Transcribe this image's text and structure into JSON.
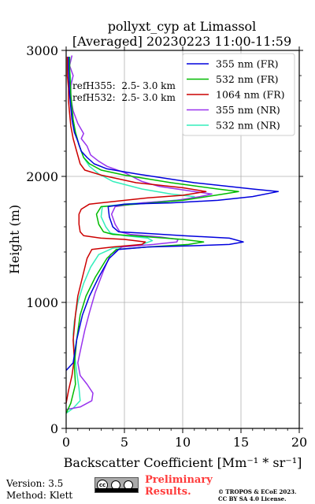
{
  "chart_data": {
    "type": "line",
    "title": "pollyxt_cyp at Limassol",
    "subtitle": "[Averaged] 20230223 11:00-11:59",
    "xlabel": "Backscatter Coefficient [Mm⁻¹ * sr⁻¹]",
    "ylabel": "Height (m)",
    "xlim": [
      0,
      20
    ],
    "ylim": [
      0,
      3000
    ],
    "xticks": [
      0,
      5,
      10,
      15,
      20
    ],
    "yticks": [
      0,
      1000,
      2000,
      3000
    ],
    "xtick_labels": [
      "0",
      "5",
      "10",
      "15",
      "20"
    ],
    "ytick_labels": [
      "0",
      "1000",
      "2000",
      "3000"
    ],
    "grid": true,
    "legend_placement": "top-right",
    "annotations": [
      "refH355:  2.5- 3.0 km",
      "refH532:  2.5- 3.0 km"
    ],
    "series": [
      {
        "name": "355 nm (FR)",
        "color": "#0000dd",
        "points": [
          [
            0,
            460
          ],
          [
            0.6,
            520
          ],
          [
            0.9,
            700
          ],
          [
            1.4,
            900
          ],
          [
            2.0,
            1050
          ],
          [
            2.8,
            1200
          ],
          [
            3.7,
            1350
          ],
          [
            4.5,
            1420
          ],
          [
            7.0,
            1440
          ],
          [
            11.0,
            1450
          ],
          [
            14.0,
            1460
          ],
          [
            15.2,
            1480
          ],
          [
            14.0,
            1510
          ],
          [
            10.0,
            1530
          ],
          [
            6.5,
            1550
          ],
          [
            4.5,
            1560
          ],
          [
            4.0,
            1600
          ],
          [
            3.7,
            1680
          ],
          [
            3.6,
            1760
          ],
          [
            5.0,
            1780
          ],
          [
            9.0,
            1790
          ],
          [
            13.0,
            1810
          ],
          [
            16.0,
            1840
          ],
          [
            18.2,
            1880
          ],
          [
            16.0,
            1900
          ],
          [
            11.0,
            1950
          ],
          [
            6.0,
            2020
          ],
          [
            3.5,
            2060
          ],
          [
            2.4,
            2100
          ],
          [
            1.8,
            2150
          ],
          [
            1.3,
            2200
          ],
          [
            1.0,
            2280
          ],
          [
            0.7,
            2350
          ],
          [
            0.5,
            2450
          ],
          [
            0.4,
            2550
          ],
          [
            0.3,
            2650
          ],
          [
            0.25,
            2750
          ],
          [
            0.2,
            2850
          ],
          [
            0.2,
            2950
          ]
        ]
      },
      {
        "name": "532 nm (FR)",
        "color": "#00bb00",
        "points": [
          [
            0,
            120
          ],
          [
            0.4,
            200
          ],
          [
            0.8,
            350
          ],
          [
            0.7,
            500
          ],
          [
            0.9,
            700
          ],
          [
            1.2,
            900
          ],
          [
            1.7,
            1050
          ],
          [
            2.5,
            1200
          ],
          [
            3.5,
            1350
          ],
          [
            4.3,
            1420
          ],
          [
            7.0,
            1440
          ],
          [
            10.5,
            1460
          ],
          [
            11.8,
            1480
          ],
          [
            10.0,
            1500
          ],
          [
            7.0,
            1520
          ],
          [
            4.0,
            1540
          ],
          [
            3.2,
            1560
          ],
          [
            2.8,
            1620
          ],
          [
            2.6,
            1700
          ],
          [
            3.0,
            1760
          ],
          [
            6.0,
            1780
          ],
          [
            10.0,
            1810
          ],
          [
            13.5,
            1860
          ],
          [
            14.8,
            1880
          ],
          [
            13.0,
            1900
          ],
          [
            9.0,
            1950
          ],
          [
            5.0,
            2010
          ],
          [
            3.0,
            2050
          ],
          [
            2.0,
            2100
          ],
          [
            1.5,
            2150
          ],
          [
            1.1,
            2250
          ],
          [
            0.8,
            2350
          ],
          [
            0.6,
            2450
          ],
          [
            0.5,
            2550
          ],
          [
            0.4,
            2650
          ],
          [
            0.35,
            2750
          ],
          [
            0.3,
            2850
          ],
          [
            0.3,
            2950
          ]
        ]
      },
      {
        "name": "1064 nm (FR)",
        "color": "#cc0000",
        "points": [
          [
            0,
            200
          ],
          [
            0.2,
            300
          ],
          [
            0.5,
            420
          ],
          [
            0.7,
            550
          ],
          [
            0.6,
            700
          ],
          [
            0.8,
            900
          ],
          [
            1.0,
            1050
          ],
          [
            1.4,
            1200
          ],
          [
            1.8,
            1350
          ],
          [
            2.2,
            1420
          ],
          [
            4.0,
            1440
          ],
          [
            6.5,
            1460
          ],
          [
            6.8,
            1480
          ],
          [
            5.0,
            1500
          ],
          [
            3.0,
            1510
          ],
          [
            1.5,
            1530
          ],
          [
            1.2,
            1560
          ],
          [
            1.1,
            1620
          ],
          [
            1.1,
            1700
          ],
          [
            1.3,
            1740
          ],
          [
            2.0,
            1780
          ],
          [
            4.0,
            1800
          ],
          [
            7.0,
            1830
          ],
          [
            10.0,
            1850
          ],
          [
            12.0,
            1880
          ],
          [
            10.0,
            1910
          ],
          [
            6.0,
            1950
          ],
          [
            3.0,
            2010
          ],
          [
            1.6,
            2050
          ],
          [
            1.2,
            2100
          ],
          [
            0.9,
            2200
          ],
          [
            0.6,
            2300
          ],
          [
            0.4,
            2400
          ],
          [
            0.3,
            2500
          ],
          [
            0.2,
            2600
          ],
          [
            0.2,
            2700
          ],
          [
            0.1,
            2800
          ],
          [
            0.1,
            2950
          ]
        ]
      },
      {
        "name": "355 nm (NR)",
        "color": "#9933ee",
        "points": [
          [
            0,
            150
          ],
          [
            1.2,
            170
          ],
          [
            2.2,
            220
          ],
          [
            2.3,
            280
          ],
          [
            1.8,
            350
          ],
          [
            1.2,
            420
          ],
          [
            1.0,
            520
          ],
          [
            1.3,
            650
          ],
          [
            1.6,
            780
          ],
          [
            2.0,
            920
          ],
          [
            2.5,
            1080
          ],
          [
            3.2,
            1250
          ],
          [
            3.8,
            1380
          ],
          [
            4.8,
            1440
          ],
          [
            7.5,
            1460
          ],
          [
            9.5,
            1480
          ],
          [
            9.6,
            1500
          ],
          [
            8.0,
            1520
          ],
          [
            5.5,
            1540
          ],
          [
            4.6,
            1560
          ],
          [
            4.2,
            1620
          ],
          [
            3.9,
            1700
          ],
          [
            4.2,
            1760
          ],
          [
            6.5,
            1790
          ],
          [
            9.5,
            1810
          ],
          [
            11.5,
            1840
          ],
          [
            12.5,
            1860
          ],
          [
            11.0,
            1880
          ],
          [
            8.0,
            1920
          ],
          [
            6.5,
            1960
          ],
          [
            5.0,
            2030
          ],
          [
            3.5,
            2080
          ],
          [
            2.8,
            2120
          ],
          [
            2.1,
            2170
          ],
          [
            1.8,
            2240
          ],
          [
            1.3,
            2300
          ],
          [
            1.5,
            2340
          ],
          [
            1.0,
            2420
          ],
          [
            0.6,
            2520
          ],
          [
            0.4,
            2620
          ],
          [
            0.4,
            2720
          ],
          [
            0.6,
            2800
          ],
          [
            0.3,
            2880
          ],
          [
            0.5,
            2960
          ]
        ]
      },
      {
        "name": "532 nm (NR)",
        "color": "#33eebb",
        "points": [
          [
            0,
            120
          ],
          [
            0.6,
            160
          ],
          [
            1.2,
            220
          ],
          [
            1.1,
            320
          ],
          [
            0.9,
            450
          ],
          [
            0.7,
            600
          ],
          [
            0.6,
            750
          ],
          [
            0.7,
            850
          ],
          [
            1.0,
            1000
          ],
          [
            1.5,
            1150
          ],
          [
            2.1,
            1280
          ],
          [
            2.8,
            1380
          ],
          [
            4.0,
            1430
          ],
          [
            6.5,
            1460
          ],
          [
            7.4,
            1490
          ],
          [
            7.0,
            1510
          ],
          [
            5.0,
            1530
          ],
          [
            3.8,
            1550
          ],
          [
            3.4,
            1600
          ],
          [
            3.0,
            1680
          ],
          [
            3.1,
            1760
          ],
          [
            5.0,
            1780
          ],
          [
            8.0,
            1800
          ],
          [
            10.5,
            1820
          ],
          [
            11.0,
            1840
          ],
          [
            9.0,
            1860
          ],
          [
            6.5,
            1900
          ],
          [
            4.0,
            1960
          ],
          [
            2.8,
            2020
          ],
          [
            2.0,
            2080
          ],
          [
            1.5,
            2150
          ],
          [
            1.1,
            2250
          ],
          [
            0.8,
            2350
          ],
          [
            0.6,
            2450
          ],
          [
            0.5,
            2550
          ],
          [
            0.4,
            2650
          ],
          [
            0.4,
            2750
          ],
          [
            0.3,
            2850
          ],
          [
            0.3,
            2950
          ]
        ]
      }
    ]
  },
  "footer": {
    "version": "Version: 3.5",
    "method": "Method: Klett",
    "preliminary": "Preliminary Results.",
    "copyright_line1": "© TROPOS & ECoE 2023.",
    "copyright_line2": "CC BY SA 4.0 License.",
    "license_badge_text": "cc BY SA"
  }
}
